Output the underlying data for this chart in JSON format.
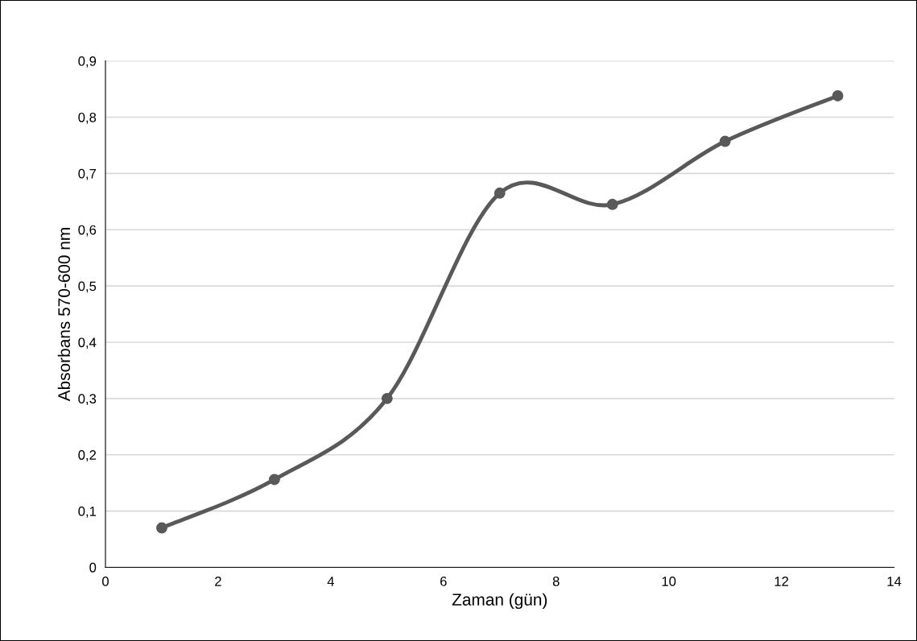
{
  "chart_data": {
    "type": "line",
    "xlabel": "Zaman (gün)",
    "ylabel": "Absorbans 570-600 nm",
    "x": [
      1,
      3,
      5,
      7,
      9,
      11,
      13
    ],
    "series": [
      {
        "color": "#595959",
        "values": [
          0.07,
          0.156,
          0.3,
          0.665,
          0.645,
          0.757,
          0.838
        ]
      }
    ],
    "xlim": [
      0,
      14
    ],
    "xticks": [
      0,
      2,
      4,
      6,
      8,
      10,
      12,
      14
    ],
    "ylim": [
      0,
      0.9
    ],
    "yticks": [
      0,
      {
        "value": 0.1,
        "label": "0,1"
      },
      {
        "value": 0.2,
        "label": "0,2"
      },
      {
        "value": 0.3,
        "label": "0,3"
      },
      {
        "value": 0.4,
        "label": "0,4"
      },
      {
        "value": 0.5,
        "label": "0,5"
      },
      {
        "value": 0.6,
        "label": "0,6"
      },
      {
        "value": 0.7,
        "label": "0,7"
      },
      {
        "value": 0.8,
        "label": "0,8"
      },
      {
        "value": 0.9,
        "label": "0,9"
      }
    ],
    "grid": "y",
    "marker": "circle",
    "line_style": "solid"
  }
}
